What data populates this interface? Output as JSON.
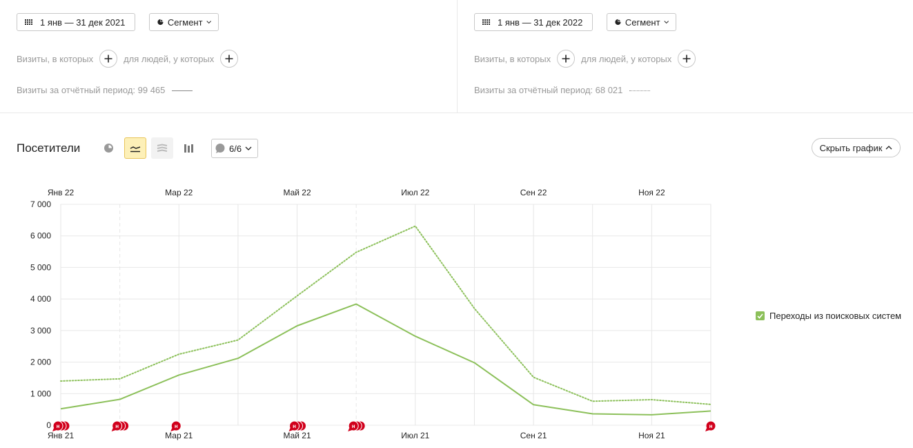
{
  "periods": [
    {
      "date_label": "1 янв — 31 дек 2021",
      "segment_label": "Сегмент",
      "filter_visits_label": "Визиты, в которых",
      "filter_people_label": "для людей, у которых",
      "visits_summary": "Визиты за отчётный период: 99 465",
      "line_style": "solid"
    },
    {
      "date_label": "1 янв — 31 дек 2022",
      "segment_label": "Сегмент",
      "filter_visits_label": "Визиты, в которых",
      "filter_people_label": "для людей, у которых",
      "visits_summary": "Визиты за отчётный период: 68 021",
      "line_style": "dotted"
    }
  ],
  "report": {
    "title": "Посетители",
    "annotations_toggle": "6/6",
    "hide_chart_label": "Скрыть график",
    "legend_item": "Переходы из поисковых систем",
    "active_tool": "line-chart",
    "colors": {
      "series": "#8cc05a",
      "annotation": "#d1001c",
      "active_tool_bg": "#fdf0b8"
    }
  },
  "chart_data": {
    "type": "line",
    "ylim": [
      0,
      7000
    ],
    "yticks": [
      "0",
      "1 000",
      "2 000",
      "3 000",
      "4 000",
      "5 000",
      "6 000",
      "7 000"
    ],
    "ytick_values": [
      0,
      1000,
      2000,
      3000,
      4000,
      5000,
      6000,
      7000
    ],
    "top_axis_labels": [
      "Янв 22",
      "Мар 22",
      "Май 22",
      "Июл 22",
      "Сен 22",
      "Ноя 22"
    ],
    "bottom_axis_labels": [
      "Янв 21",
      "Мар 21",
      "Май 21",
      "Июл 21",
      "Сен 21",
      "Ноя 21"
    ],
    "months": 12,
    "legend_position": "right",
    "series": [
      {
        "name": "Переходы из поисковых систем",
        "period": "2021",
        "style": "solid",
        "values": [
          520,
          820,
          1590,
          2120,
          3150,
          3840,
          2820,
          1980,
          650,
          360,
          330,
          450
        ]
      },
      {
        "name": "Переходы из поисковых систем",
        "period": "2022",
        "style": "dotted",
        "values": [
          1400,
          1470,
          2250,
          2700,
          4100,
          5480,
          6310,
          3700,
          1520,
          760,
          810,
          660
        ]
      }
    ],
    "annotation_markers": [
      {
        "month": 0,
        "count": 3
      },
      {
        "month": 1,
        "count": 3
      },
      {
        "month": 2,
        "count": 1
      },
      {
        "month": 4,
        "count": 3
      },
      {
        "month": 5,
        "count": 3
      },
      {
        "month": 11,
        "count": 1
      }
    ],
    "annotation_letter": "н"
  }
}
